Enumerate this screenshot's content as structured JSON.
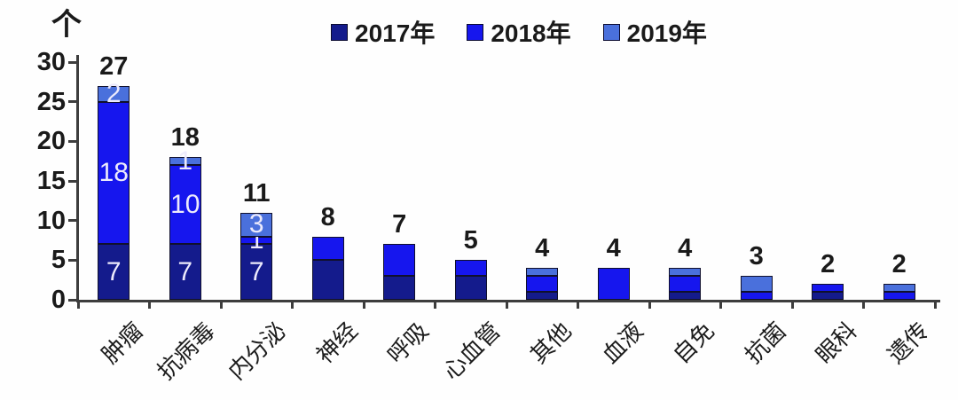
{
  "unit_label": "个",
  "legend": {
    "items": [
      {
        "label": "2017年",
        "color": "#141b8c"
      },
      {
        "label": "2018年",
        "color": "#1616ee"
      },
      {
        "label": "2019年",
        "color": "#4a70dc"
      }
    ]
  },
  "chart_data": {
    "type": "bar",
    "stacked": true,
    "title": "",
    "xlabel": "",
    "ylabel": "个",
    "categories": [
      "肿瘤",
      "抗病毒",
      "内分泌",
      "神经",
      "呼吸",
      "心血管",
      "其他",
      "血液",
      "自免",
      "抗菌",
      "眼科",
      "遗传"
    ],
    "series": [
      {
        "name": "2017年",
        "color": "#141b8c",
        "values": [
          7,
          7,
          7,
          5,
          3,
          3,
          1,
          0,
          1,
          0,
          1,
          0
        ]
      },
      {
        "name": "2018年",
        "color": "#1616ee",
        "values": [
          18,
          10,
          1,
          3,
          4,
          2,
          2,
          4,
          2,
          1,
          1,
          1
        ]
      },
      {
        "name": "2019年",
        "color": "#4a70dc",
        "values": [
          2,
          1,
          3,
          0,
          0,
          0,
          1,
          0,
          1,
          2,
          0,
          1
        ]
      }
    ],
    "totals": [
      27,
      18,
      11,
      8,
      7,
      5,
      4,
      4,
      4,
      3,
      2,
      2
    ],
    "segment_labels_shown": [
      true,
      true,
      true,
      false,
      false,
      false,
      false,
      false,
      false,
      false,
      false,
      false
    ],
    "y_ticks": [
      0,
      5,
      10,
      15,
      20,
      25,
      30
    ],
    "ylim": [
      0,
      30
    ],
    "grid": false,
    "legend_position": "top"
  },
  "colors": {
    "axis": "#3d3d3d",
    "text": "#1a1a1a",
    "segment_label": "#eceafc",
    "segment_border": "#10102c",
    "background": "#fefefe"
  }
}
